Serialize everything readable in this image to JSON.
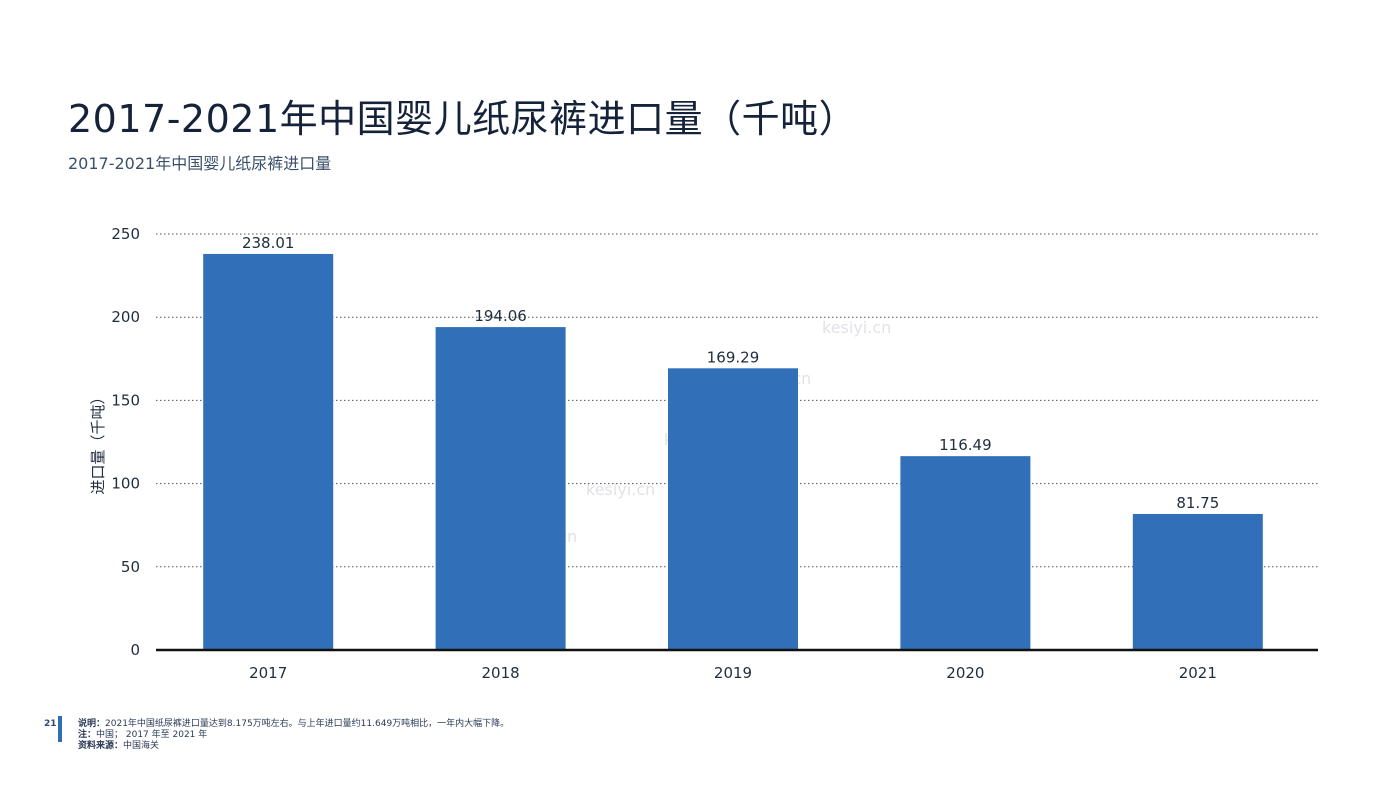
{
  "header": {
    "title": "2017-2021年中国婴儿纸尿裤进口量（千吨）",
    "subtitle": "2017-2021年中国婴儿纸尿裤进口量"
  },
  "chart_data": {
    "type": "bar",
    "categories": [
      "2017",
      "2018",
      "2019",
      "2020",
      "2021"
    ],
    "values": [
      238.01,
      194.06,
      169.29,
      116.49,
      81.75
    ],
    "value_labels": [
      "238.01",
      "194.06",
      "169.29",
      "116.49",
      "81.75"
    ],
    "title": "",
    "xlabel": "",
    "ylabel": "进口量（千吨）",
    "ylim": [
      0,
      250
    ],
    "yticks": [
      0,
      50,
      100,
      150,
      200,
      250
    ],
    "grid": true,
    "bar_color": "#3170b8"
  },
  "footer": {
    "page_number": "21",
    "note_label": "说明：",
    "note_text": "2021年中国纸尿裤进口量达到8.175万吨左右。与上年进口量约11.649万吨相比，一年内大幅下降。",
    "scope_label": "注：",
    "scope_text": "中国； 2017 年至 2021 年",
    "source_label": "资料来源：",
    "source_text": "中国海关"
  },
  "watermark": {
    "text": "kesiyi.cn"
  }
}
